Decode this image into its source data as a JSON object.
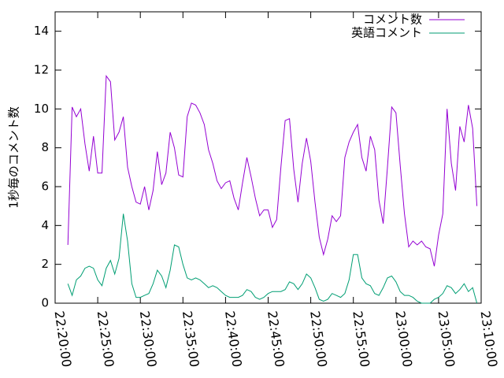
{
  "chart_data": {
    "type": "line",
    "y_label": "1秒毎のコメント数",
    "x": [
      "22:21:30",
      "22:22:00",
      "22:22:30",
      "22:23:00",
      "22:23:30",
      "22:24:00",
      "22:24:30",
      "22:25:00",
      "22:25:30",
      "22:26:00",
      "22:26:30",
      "22:27:00",
      "22:27:30",
      "22:28:00",
      "22:28:30",
      "22:29:00",
      "22:29:30",
      "22:30:00",
      "22:30:30",
      "22:31:00",
      "22:31:30",
      "22:32:00",
      "22:32:30",
      "22:33:00",
      "22:33:30",
      "22:34:00",
      "22:34:30",
      "22:35:00",
      "22:35:30",
      "22:36:00",
      "22:36:30",
      "22:37:00",
      "22:37:30",
      "22:38:00",
      "22:38:30",
      "22:39:00",
      "22:39:30",
      "22:40:00",
      "22:40:30",
      "22:41:00",
      "22:41:30",
      "22:42:00",
      "22:42:30",
      "22:43:00",
      "22:43:30",
      "22:44:00",
      "22:44:30",
      "22:45:00",
      "22:45:30",
      "22:46:00",
      "22:46:30",
      "22:47:00",
      "22:47:30",
      "22:48:00",
      "22:48:30",
      "22:49:00",
      "22:49:30",
      "22:50:00",
      "22:50:30",
      "22:51:00",
      "22:51:30",
      "22:52:00",
      "22:52:30",
      "22:53:00",
      "22:53:30",
      "22:54:00",
      "22:54:30",
      "22:55:00",
      "22:55:30",
      "22:56:00",
      "22:56:30",
      "22:57:00",
      "22:57:30",
      "22:58:00",
      "22:58:30",
      "22:59:00",
      "22:59:30",
      "23:00:00",
      "23:00:30",
      "23:01:00",
      "23:01:30",
      "23:02:00",
      "23:02:30",
      "23:03:00",
      "23:03:30",
      "23:04:00",
      "23:04:30",
      "23:05:00",
      "23:05:30",
      "23:06:00",
      "23:06:30",
      "23:07:00",
      "23:07:30",
      "23:08:00",
      "23:08:30",
      "23:09:00",
      "23:09:30"
    ],
    "series": [
      {
        "name": "コメント数",
        "color": "#9400d3",
        "values": [
          3.0,
          10.1,
          9.6,
          10.0,
          8.2,
          6.8,
          8.6,
          6.7,
          6.7,
          11.7,
          11.4,
          8.4,
          8.8,
          9.6,
          7.0,
          6.0,
          5.2,
          5.1,
          6.0,
          4.8,
          5.8,
          7.8,
          6.1,
          6.7,
          8.8,
          8.0,
          6.6,
          6.5,
          9.6,
          10.3,
          10.2,
          9.8,
          9.2,
          7.9,
          7.2,
          6.3,
          5.9,
          6.2,
          6.3,
          5.4,
          4.8,
          6.2,
          7.5,
          6.5,
          5.4,
          4.5,
          4.8,
          4.8,
          3.9,
          4.3,
          7.0,
          9.4,
          9.5,
          6.9,
          5.2,
          7.2,
          8.5,
          7.3,
          5.2,
          3.4,
          2.5,
          3.3,
          4.5,
          4.2,
          4.5,
          7.5,
          8.3,
          8.8,
          9.2,
          7.5,
          6.8,
          8.6,
          7.9,
          5.3,
          4.1,
          7.0,
          10.1,
          9.8,
          7.1,
          4.6,
          2.9,
          3.2,
          3.0,
          3.2,
          2.9,
          2.8,
          1.9,
          3.5,
          4.6,
          10.0,
          7.2,
          5.8,
          9.1,
          8.3,
          10.2,
          9.0,
          5.0
        ]
      },
      {
        "name": "英語コメント",
        "color": "#009e73",
        "values": [
          1.0,
          0.4,
          1.2,
          1.4,
          1.8,
          1.9,
          1.8,
          1.2,
          0.9,
          1.8,
          2.2,
          1.5,
          2.3,
          4.6,
          3.2,
          1.0,
          0.3,
          0.3,
          0.4,
          0.5,
          1.0,
          1.7,
          1.4,
          0.8,
          1.7,
          3.0,
          2.9,
          2.0,
          1.3,
          1.2,
          1.3,
          1.2,
          1.0,
          0.8,
          0.9,
          0.8,
          0.6,
          0.4,
          0.3,
          0.3,
          0.3,
          0.4,
          0.7,
          0.6,
          0.3,
          0.2,
          0.3,
          0.5,
          0.6,
          0.6,
          0.6,
          0.7,
          1.1,
          1.0,
          0.7,
          1.0,
          1.5,
          1.3,
          0.8,
          0.2,
          0.1,
          0.2,
          0.5,
          0.4,
          0.3,
          0.5,
          1.2,
          2.5,
          2.5,
          1.3,
          1.0,
          0.9,
          0.5,
          0.4,
          0.8,
          1.3,
          1.4,
          1.1,
          0.6,
          0.4,
          0.4,
          0.3,
          0.1,
          0.0,
          0.0,
          0.0,
          0.2,
          0.3,
          0.5,
          0.9,
          0.8,
          0.5,
          0.7,
          1.0,
          0.6,
          0.8,
          0.0
        ]
      }
    ],
    "xlim": [
      "22:20:00",
      "23:10:00"
    ],
    "xticks": [
      "22:20:00",
      "22:25:00",
      "22:30:00",
      "22:35:00",
      "22:40:00",
      "22:45:00",
      "22:50:00",
      "22:55:00",
      "23:00:00",
      "23:05:00",
      "23:10:00"
    ],
    "ylim": [
      0,
      15
    ],
    "yticks": [
      0,
      2,
      4,
      6,
      8,
      10,
      12,
      14
    ],
    "legend": "top-right"
  }
}
